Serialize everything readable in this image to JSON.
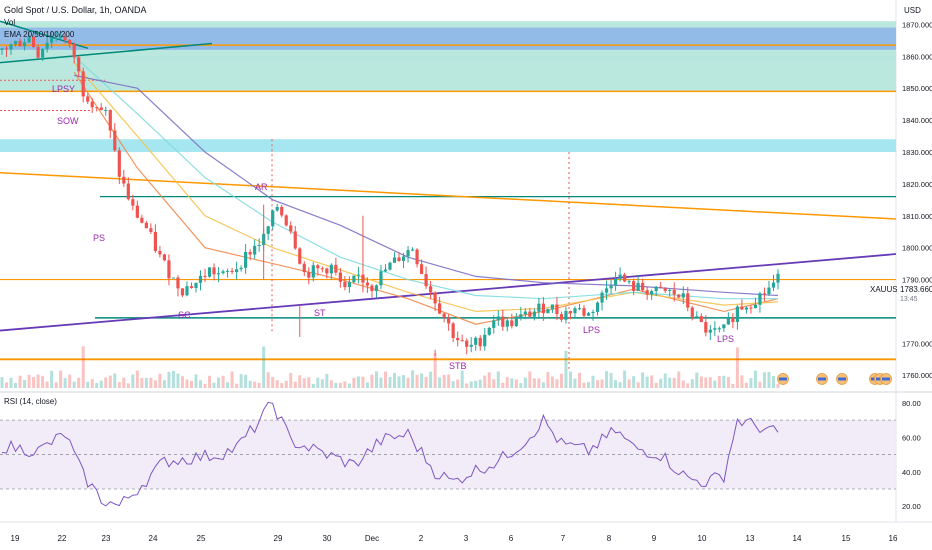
{
  "header": {
    "title": "Gold Spot / U.S. Dollar, 1h, OANDA",
    "vol_label": "Vol",
    "ema_label": "EMA 20/50/100/200",
    "currency": "USD"
  },
  "price_axis": {
    "ticks": [
      "1870.000",
      "1860.000",
      "1850.000",
      "1840.000",
      "1830.000",
      "1820.000",
      "1810.000",
      "1800.000",
      "1790.000",
      "1770.000",
      "1760.000"
    ],
    "range": [
      1756,
      1872
    ]
  },
  "current_price": {
    "symbol": "XAUUSD",
    "value": "1783.660",
    "countdown": "13:45"
  },
  "rsi": {
    "label": "RSI (14, close)",
    "ticks": [
      "80.00",
      "60.00",
      "40.00",
      "20.00"
    ],
    "range": [
      12,
      84
    ],
    "upper_band": 70,
    "middle_band": 50,
    "lower_band": 30
  },
  "time_axis": {
    "labels": [
      "19",
      "22",
      "23",
      "24",
      "25",
      "29",
      "30",
      "Dec",
      "2",
      "3",
      "6",
      "7",
      "8",
      "9",
      "10",
      "13",
      "14",
      "15",
      "16"
    ]
  },
  "annotations": {
    "lpsy": "LPSY",
    "sow": "SOW",
    "ps": "PS",
    "ar": "AR",
    "sc": "SC",
    "st": "ST",
    "stb": "STB",
    "lps1": "LPS",
    "lps2": "LPS"
  },
  "colors": {
    "zone_blue": "#90b8e8",
    "zone_teal": "#b2e5dc",
    "zone_cyan": "#a6e6f0",
    "orange": "#ff9800",
    "teal": "#00897b",
    "purple": "#673ab7",
    "up": "#26a69a",
    "down": "#ef5350",
    "ema20": "#ef8a4c",
    "ema50": "#f5c24c",
    "ema100": "#7fdbe0",
    "ema200": "#7c6fc4",
    "rsi_line": "#7e57c2",
    "annotation": "#9c27b0"
  },
  "chart_data": {
    "type": "candlestick",
    "title": "Gold Spot / U.S. Dollar, 1h, OANDA",
    "ylim": [
      1756,
      1872
    ],
    "x_categories": [
      "19",
      "22",
      "23",
      "24",
      "25",
      "29",
      "30",
      "Dec",
      "2",
      "3",
      "6",
      "7",
      "8",
      "9",
      "10",
      "13",
      "14",
      "15",
      "16"
    ],
    "path_points": [
      [
        0,
        1862
      ],
      [
        3,
        1864
      ],
      [
        6,
        1866
      ],
      [
        8,
        1861
      ],
      [
        10,
        1865
      ],
      [
        13,
        1867
      ],
      [
        16,
        1860
      ],
      [
        18,
        1849
      ],
      [
        20,
        1846
      ],
      [
        23,
        1842
      ],
      [
        26,
        1823
      ],
      [
        29,
        1812
      ],
      [
        32,
        1806
      ],
      [
        35,
        1797
      ],
      [
        38,
        1790
      ],
      [
        40,
        1787
      ],
      [
        43,
        1789
      ],
      [
        46,
        1793
      ],
      [
        49,
        1791
      ],
      [
        52,
        1794
      ],
      [
        55,
        1799
      ],
      [
        58,
        1803
      ],
      [
        61,
        1813
      ],
      [
        64,
        1806
      ],
      [
        67,
        1792
      ],
      [
        70,
        1793
      ],
      [
        73,
        1794
      ],
      [
        76,
        1786
      ],
      [
        79,
        1791
      ],
      [
        82,
        1788
      ],
      [
        85,
        1793
      ],
      [
        88,
        1797
      ],
      [
        91,
        1800
      ],
      [
        94,
        1789
      ],
      [
        97,
        1781
      ],
      [
        100,
        1773
      ],
      [
        103,
        1768
      ],
      [
        106,
        1771
      ],
      [
        109,
        1778
      ],
      [
        112,
        1776
      ],
      [
        115,
        1778
      ],
      [
        118,
        1780
      ],
      [
        121,
        1782
      ],
      [
        124,
        1779
      ],
      [
        127,
        1781
      ],
      [
        130,
        1779
      ],
      [
        133,
        1785
      ],
      [
        136,
        1792
      ],
      [
        139,
        1788
      ],
      [
        142,
        1787
      ],
      [
        145,
        1786
      ],
      [
        148,
        1786
      ],
      [
        151,
        1784
      ],
      [
        154,
        1777
      ],
      [
        157,
        1773
      ],
      [
        160,
        1774
      ],
      [
        163,
        1781
      ],
      [
        166,
        1783
      ],
      [
        169,
        1786
      ],
      [
        172,
        1790
      ]
    ],
    "ema_series": [
      {
        "values": [
          [
            16,
            1855
          ],
          [
            30,
            1825
          ],
          [
            45,
            1800
          ],
          [
            60,
            1795
          ],
          [
            75,
            1790
          ],
          [
            90,
            1784
          ],
          [
            105,
            1776
          ],
          [
            120,
            1780
          ],
          [
            140,
            1787
          ],
          [
            160,
            1780
          ],
          [
            172,
            1784
          ]
        ]
      },
      {
        "values": [
          [
            16,
            1858
          ],
          [
            30,
            1835
          ],
          [
            45,
            1810
          ],
          [
            60,
            1800
          ],
          [
            75,
            1793
          ],
          [
            90,
            1786
          ],
          [
            105,
            1780
          ],
          [
            120,
            1781
          ],
          [
            140,
            1786
          ],
          [
            160,
            1782
          ],
          [
            172,
            1783
          ]
        ]
      },
      {
        "values": [
          [
            16,
            1860
          ],
          [
            30,
            1842
          ],
          [
            45,
            1822
          ],
          [
            60,
            1808
          ],
          [
            75,
            1797
          ],
          [
            90,
            1790
          ],
          [
            105,
            1785
          ],
          [
            120,
            1784
          ],
          [
            140,
            1786
          ],
          [
            160,
            1784
          ],
          [
            172,
            1784
          ]
        ]
      },
      {
        "values": [
          [
            16,
            1854
          ],
          [
            30,
            1850
          ],
          [
            45,
            1830
          ],
          [
            60,
            1815
          ],
          [
            75,
            1807
          ],
          [
            90,
            1797
          ],
          [
            105,
            1791
          ],
          [
            120,
            1789
          ],
          [
            140,
            1788
          ],
          [
            160,
            1786
          ],
          [
            172,
            1785
          ]
        ]
      }
    ],
    "rsi_values": [
      [
        0,
        55
      ],
      [
        8,
        52
      ],
      [
        14,
        62
      ],
      [
        18,
        38
      ],
      [
        22,
        24
      ],
      [
        26,
        20
      ],
      [
        30,
        30
      ],
      [
        36,
        46
      ],
      [
        42,
        48
      ],
      [
        48,
        50
      ],
      [
        52,
        54
      ],
      [
        56,
        66
      ],
      [
        60,
        80
      ],
      [
        64,
        58
      ],
      [
        70,
        52
      ],
      [
        78,
        44
      ],
      [
        84,
        58
      ],
      [
        90,
        62
      ],
      [
        96,
        40
      ],
      [
        100,
        34
      ],
      [
        104,
        40
      ],
      [
        110,
        46
      ],
      [
        116,
        58
      ],
      [
        120,
        70
      ],
      [
        124,
        56
      ],
      [
        130,
        52
      ],
      [
        136,
        64
      ],
      [
        140,
        54
      ],
      [
        146,
        50
      ],
      [
        152,
        36
      ],
      [
        156,
        34
      ],
      [
        160,
        38
      ],
      [
        163,
        70
      ],
      [
        168,
        66
      ],
      [
        172,
        62
      ]
    ]
  }
}
